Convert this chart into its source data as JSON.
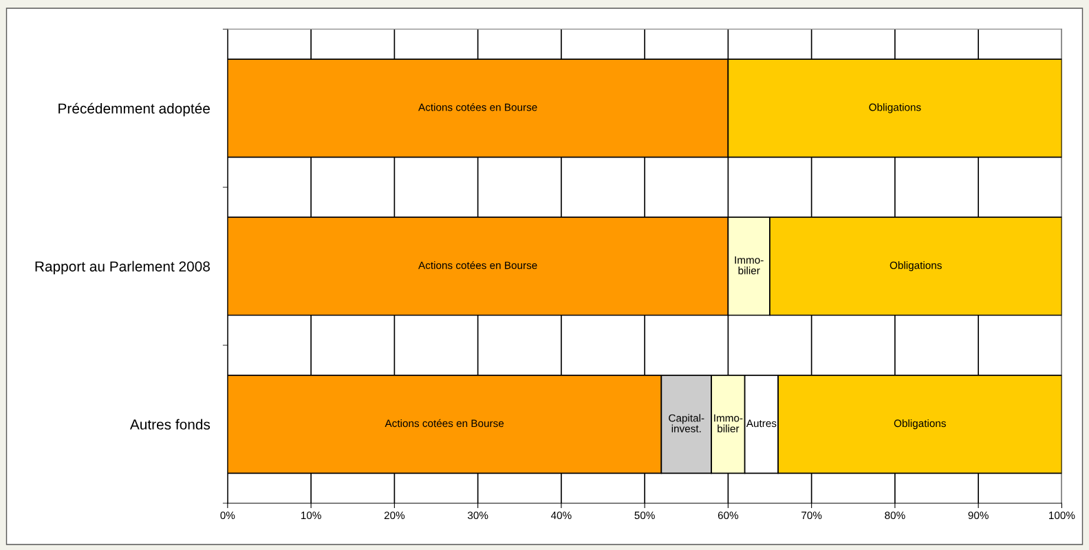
{
  "chart_data": {
    "type": "bar",
    "orientation": "horizontal",
    "stacked": true,
    "categories": [
      "Précédemment adoptée",
      "Rapport au Parlement 2008",
      "Autres fonds"
    ],
    "series": [
      {
        "name": "Actions cotées en Bourse",
        "color": "#ff9900",
        "values": [
          60,
          60,
          52
        ]
      },
      {
        "name": "Capital-\ninvest.",
        "color": "#cccccc",
        "values": [
          null,
          null,
          6
        ]
      },
      {
        "name": "Immo-\nbilier",
        "color": "#ffffcc",
        "values": [
          null,
          5,
          4
        ]
      },
      {
        "name": "Autres",
        "color": "#ffffff",
        "values": [
          null,
          null,
          4
        ]
      },
      {
        "name": "Obligations",
        "color": "#ffcc00",
        "values": [
          40,
          35,
          34
        ]
      }
    ],
    "xlim": [
      0,
      100
    ],
    "xticks": [
      {
        "value": 0,
        "label": "0%"
      },
      {
        "value": 10,
        "label": "10%"
      },
      {
        "value": 20,
        "label": "20%"
      },
      {
        "value": 30,
        "label": "30%"
      },
      {
        "value": 40,
        "label": "40%"
      },
      {
        "value": 50,
        "label": "50%"
      },
      {
        "value": 60,
        "label": "60%"
      },
      {
        "value": 70,
        "label": "70%"
      },
      {
        "value": 80,
        "label": "80%"
      },
      {
        "value": 90,
        "label": "90%"
      },
      {
        "value": 100,
        "label": "100%"
      }
    ],
    "grid": "x",
    "legend": false
  }
}
